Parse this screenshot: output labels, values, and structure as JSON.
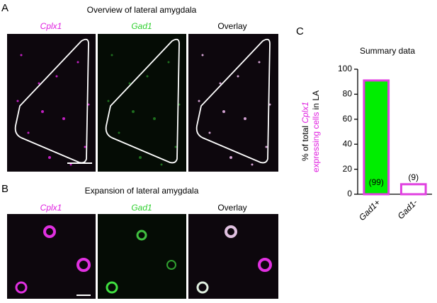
{
  "panels": {
    "a": {
      "label": "A",
      "title": "Overview of lateral amygdala",
      "images": [
        "Cplx1",
        "Gad1",
        "Overlay"
      ]
    },
    "b": {
      "label": "B",
      "title": "Expansion of lateral amygdala",
      "images": [
        "Cplx1",
        "Gad1",
        "Overlay"
      ]
    },
    "c": {
      "label": "C"
    }
  },
  "chart_data": {
    "type": "bar",
    "title": "Summary data",
    "categories": [
      "Gad1+",
      "Gad1-"
    ],
    "values": [
      91,
      8
    ],
    "colors": [
      "#00ee00",
      "#ffffff"
    ],
    "edge_color": "#e040e0",
    "annotations": [
      "(99)",
      "(9)"
    ],
    "ylabel": [
      "% of total ",
      "Cplx1",
      "expressing cells",
      " in LA"
    ],
    "ylim": [
      0,
      100
    ],
    "yticks": [
      0,
      20,
      40,
      60,
      80,
      100
    ]
  }
}
